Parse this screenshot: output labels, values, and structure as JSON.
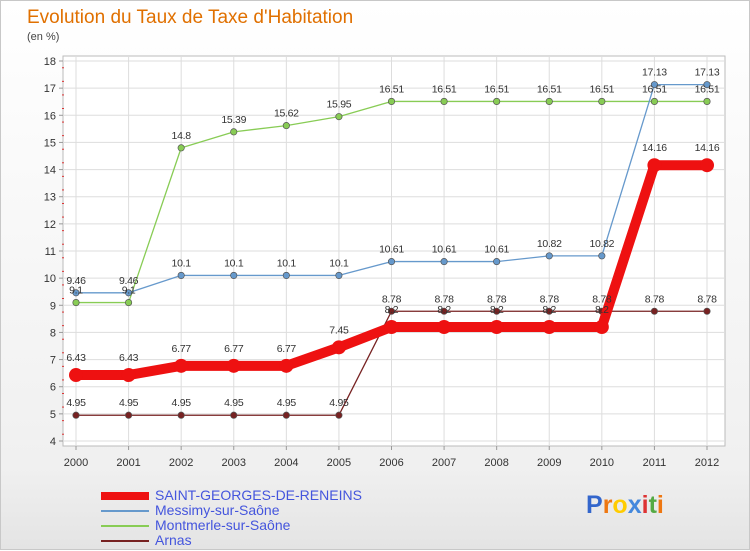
{
  "chart_data": {
    "type": "line",
    "title": "Evolution du Taux de Taxe d'Habitation",
    "subtitle": "(en %)",
    "x": [
      "2000",
      "2001",
      "2002",
      "2003",
      "2004",
      "2005",
      "2006",
      "2007",
      "2008",
      "2009",
      "2010",
      "2011",
      "2012"
    ],
    "ylim": [
      4,
      18
    ],
    "yticks": [
      4,
      5,
      6,
      7,
      8,
      9,
      10,
      11,
      12,
      13,
      14,
      15,
      16,
      17,
      18
    ],
    "grid": true,
    "legend_position": "bottom-left",
    "series": [
      {
        "name": "SAINT-GEORGES-DE-RENEINS",
        "color": "#ee1111",
        "width": 10,
        "values": [
          6.43,
          6.43,
          6.77,
          6.77,
          6.77,
          7.45,
          8.2,
          8.2,
          8.2,
          8.2,
          8.2,
          14.16,
          14.16
        ],
        "labels": [
          "6.43",
          "6.43",
          "6.77",
          "6.77",
          "6.77",
          "7.45",
          "8.2",
          "8.2",
          "8.2",
          "8.2",
          "8.2",
          "14.16",
          "14.16"
        ]
      },
      {
        "name": "Messimy-sur-Saône",
        "color": "#6699cc",
        "width": 1.3,
        "values": [
          9.46,
          9.46,
          10.1,
          10.1,
          10.1,
          10.1,
          10.61,
          10.61,
          10.61,
          10.82,
          10.82,
          17.13,
          17.13
        ],
        "labels": [
          "9.46",
          "9.46",
          "10.1",
          "10.1",
          "10.1",
          "10.1",
          "10.61",
          "10.61",
          "10.61",
          "10.82",
          "10.82",
          "17.13",
          "17.13"
        ]
      },
      {
        "name": "Montmerle-sur-Saône",
        "color": "#88cc55",
        "width": 1.3,
        "values": [
          9.1,
          9.1,
          14.8,
          15.39,
          15.62,
          15.95,
          16.51,
          16.51,
          16.51,
          16.51,
          16.51,
          16.51,
          16.51
        ],
        "labels": [
          "9.1",
          "9.1",
          "14.8",
          "15.39",
          "15.62",
          "15.95",
          "16.51",
          "16.51",
          "16.51",
          "16.51",
          "16.51",
          "16.51",
          "16.51"
        ]
      },
      {
        "name": "Arnas",
        "color": "#772222",
        "width": 1.3,
        "values": [
          4.95,
          4.95,
          4.95,
          4.95,
          4.95,
          4.95,
          8.78,
          8.78,
          8.78,
          8.78,
          8.78,
          8.78,
          8.78
        ],
        "labels": [
          "4.95",
          "4.95",
          "4.95",
          "4.95",
          "4.95",
          "4.95",
          "8.78",
          "8.78",
          "8.78",
          "8.78",
          "8.78",
          "8.78",
          "8.78"
        ]
      }
    ]
  },
  "logo": {
    "letters": [
      "P",
      "r",
      "o",
      "x",
      "i",
      "t",
      "i"
    ],
    "colors": [
      "#3366cc",
      "#ee7711",
      "#ffcc00",
      "#4488dd",
      "#dd3333",
      "#55aa44",
      "#ee7711"
    ]
  }
}
